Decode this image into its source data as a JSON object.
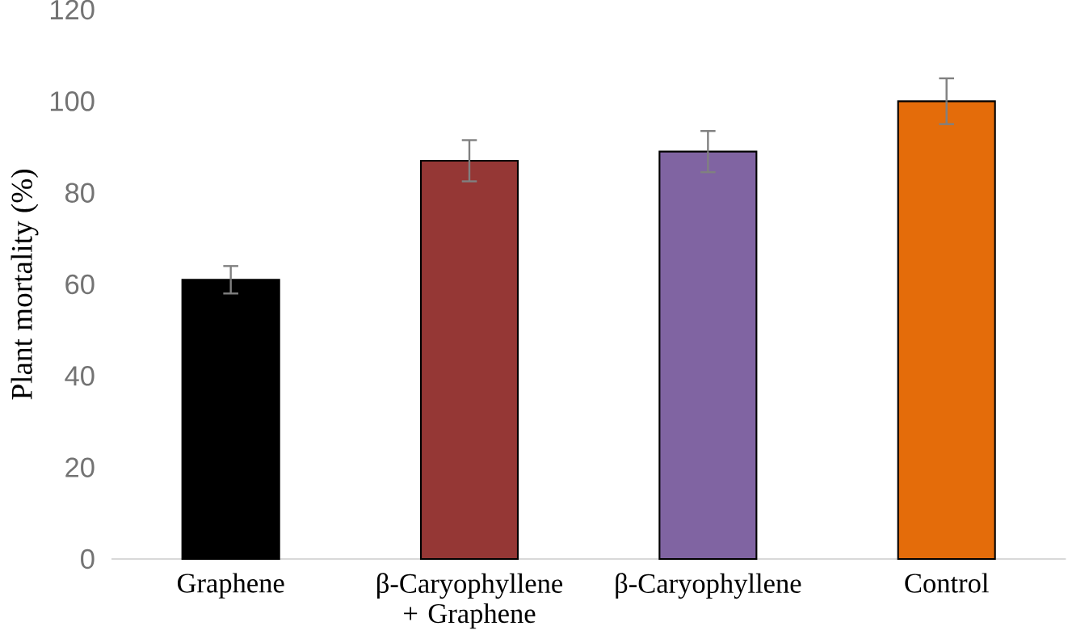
{
  "chart_data": {
    "type": "bar",
    "ylabel": "Plant mortality (%)",
    "categories": [
      "Graphene",
      "β-Caryophyllene + Graphene",
      "β-Caryophyllene",
      "Control"
    ],
    "values": [
      61,
      87,
      89,
      100
    ],
    "errors": [
      3,
      4.5,
      4.5,
      5
    ],
    "colors": [
      "#000000",
      "#953735",
      "#8064a2",
      "#e46c0a"
    ],
    "ylim": [
      0,
      120
    ],
    "yticks": [
      0,
      20,
      40,
      60,
      80,
      100,
      120
    ]
  }
}
